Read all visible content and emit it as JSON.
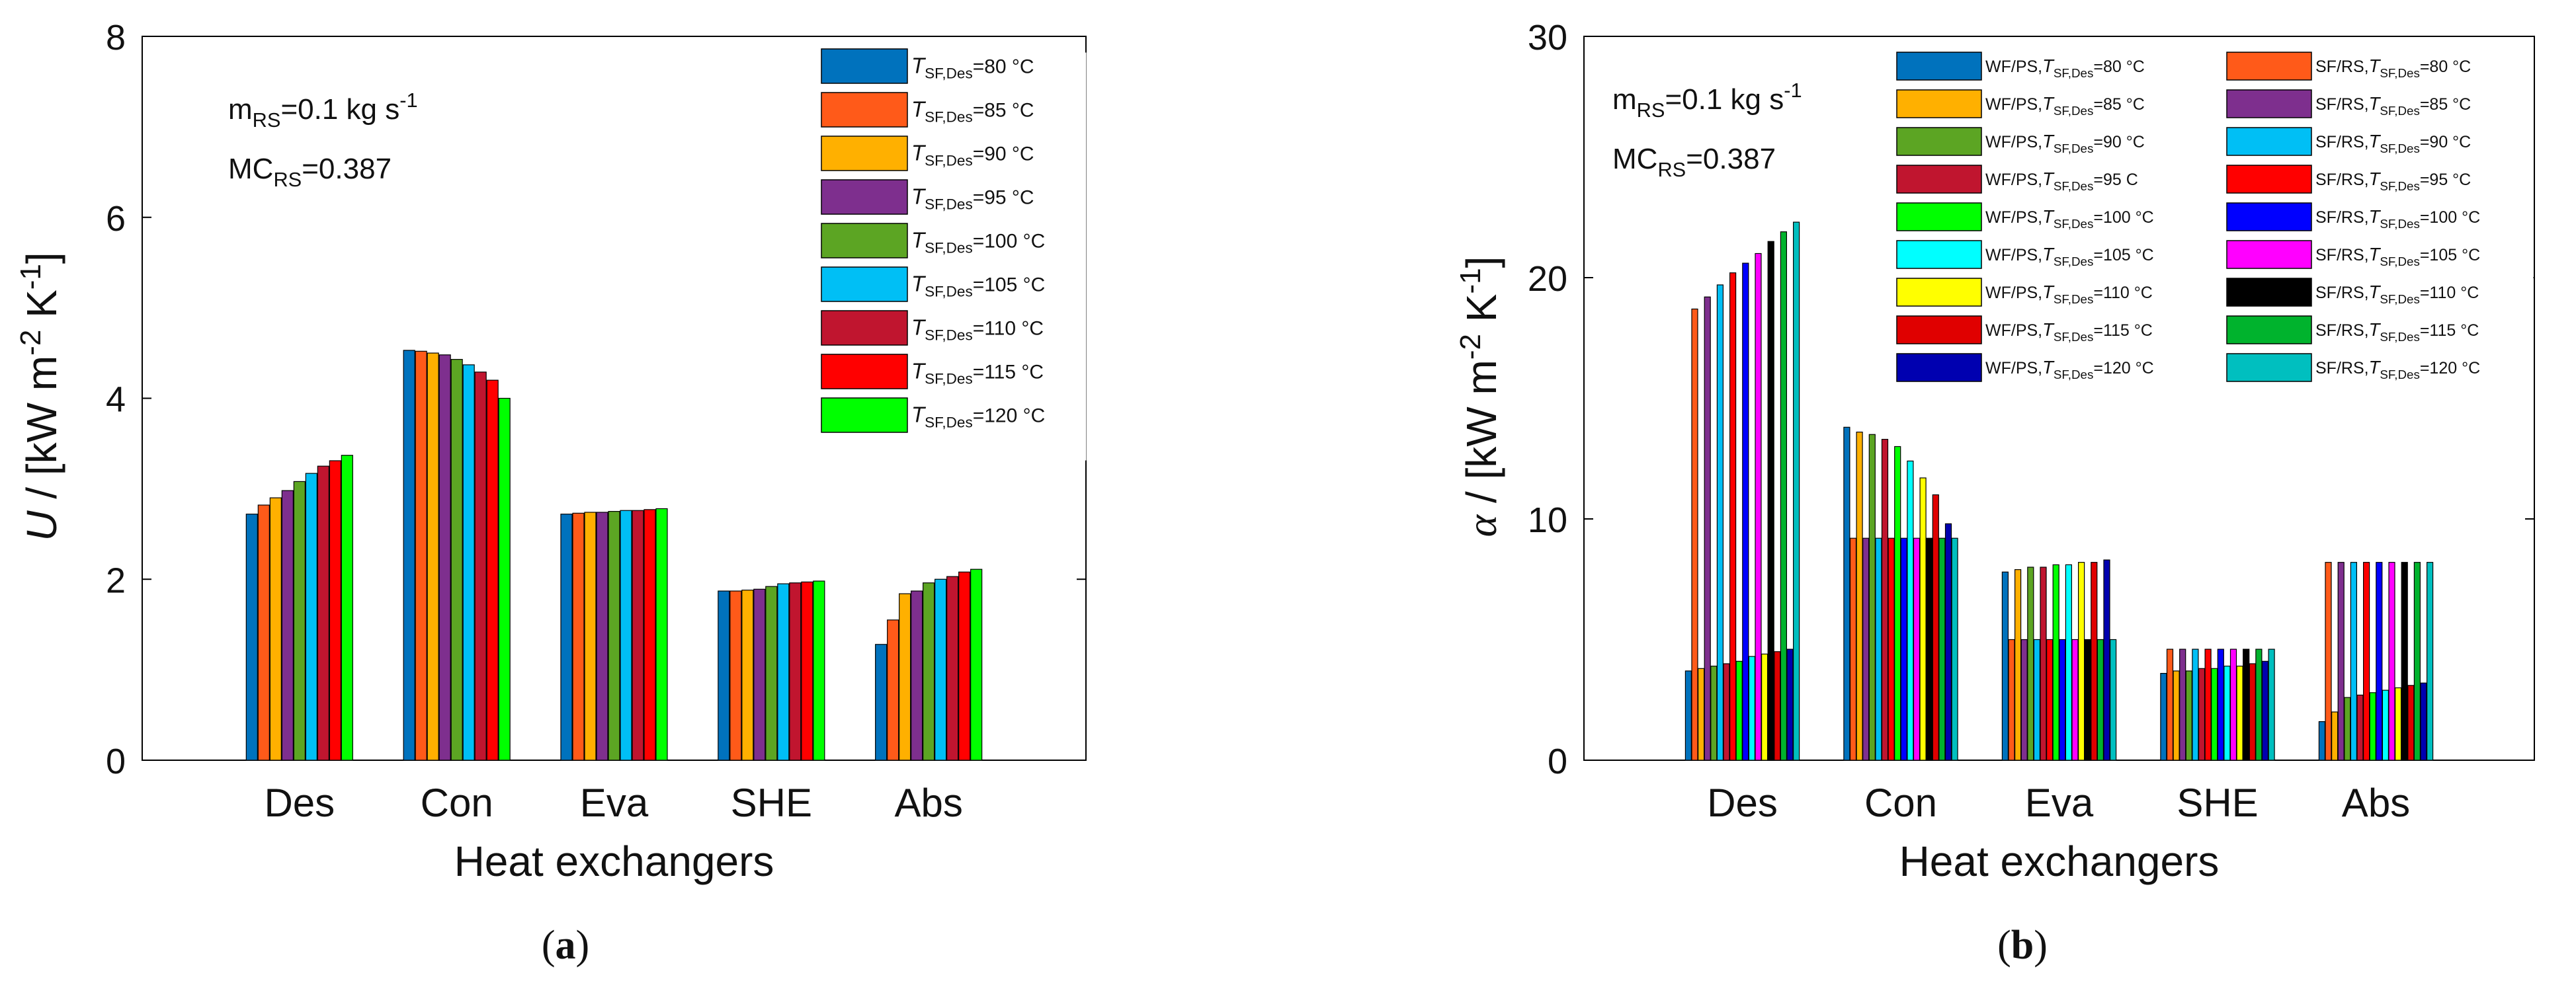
{
  "chart_data": [
    {
      "type": "bar",
      "panel_label": "a",
      "title": "",
      "xlabel": "Heat exchangers",
      "ylabel": "U / [kW m-2 K-1]",
      "ylabel_parts": {
        "symbol": "U",
        "sep": " / [kW m",
        "exp1": "-2",
        "mid": " K",
        "exp2": "-1",
        "end": "]"
      },
      "ylim": [
        0,
        8
      ],
      "yticks": [
        "0",
        "2",
        "4",
        "6",
        "8"
      ],
      "categories": [
        "Des",
        "Con",
        "Eva",
        "SHE",
        "Abs"
      ],
      "annotations": [
        {
          "base": "m",
          "sub": "RS",
          "rest": "=0.1 kg s",
          "sup": "-1"
        },
        {
          "base": "MC",
          "sub": "RS",
          "rest": "=0.387",
          "sup": ""
        }
      ],
      "series": [
        {
          "name": "T_SF,Des=80 °C",
          "leg_pre": "",
          "leg_sub": "SF,Des",
          "leg_post": "=80 °C",
          "color": "#0072BD",
          "values": [
            2.72,
            4.53,
            2.72,
            1.87,
            1.28
          ]
        },
        {
          "name": "T_SF,Des=85 °C",
          "leg_pre": "",
          "leg_sub": "SF,Des",
          "leg_post": "=85 °C",
          "color": "#FF5A19",
          "values": [
            2.82,
            4.52,
            2.73,
            1.87,
            1.55
          ]
        },
        {
          "name": "T_SF,Des=90 °C",
          "leg_pre": "",
          "leg_sub": "SF,Des",
          "leg_post": "=90 °C",
          "color": "#FFB000",
          "values": [
            2.9,
            4.5,
            2.74,
            1.88,
            1.84
          ]
        },
        {
          "name": "T_SF,Des=95 °C",
          "leg_pre": "",
          "leg_sub": "SF,Des",
          "leg_post": "=95 °C",
          "color": "#7E2F8E",
          "values": [
            2.98,
            4.48,
            2.74,
            1.89,
            1.87
          ]
        },
        {
          "name": "T_SF,Des=100 °C",
          "leg_pre": "",
          "leg_sub": "SF,Des",
          "leg_post": "=100 °C",
          "color": "#5CA523",
          "values": [
            3.08,
            4.43,
            2.75,
            1.92,
            1.96
          ]
        },
        {
          "name": "T_SF,Des=105 °C",
          "leg_pre": "",
          "leg_sub": "SF,Des",
          "leg_post": "=105 °C",
          "color": "#00BFF5",
          "values": [
            3.17,
            4.37,
            2.76,
            1.95,
            2.0
          ]
        },
        {
          "name": "T_SF,Des=110 °C",
          "leg_pre": "",
          "leg_sub": "SF,Des",
          "leg_post": "=110 °C",
          "color": "#C0152F",
          "values": [
            3.25,
            4.29,
            2.76,
            1.96,
            2.03
          ]
        },
        {
          "name": "T_SF,Des=115 °C",
          "leg_pre": "",
          "leg_sub": "SF,Des",
          "leg_post": "=115 °C",
          "color": "#FF0000",
          "values": [
            3.31,
            4.2,
            2.77,
            1.97,
            2.08
          ]
        },
        {
          "name": "T_SF,Des=120 °C",
          "leg_pre": "",
          "leg_sub": "SF,Des",
          "leg_post": "=120 °C",
          "color": "#00FF00",
          "values": [
            3.37,
            4.0,
            2.78,
            1.98,
            2.11
          ]
        }
      ]
    },
    {
      "type": "bar",
      "panel_label": "b",
      "title": "",
      "xlabel": "Heat exchangers",
      "ylabel": "α / [kW m-2 K-1]",
      "ylabel_parts": {
        "symbol": "α",
        "sep": " / [kW m",
        "exp1": "-2",
        "mid": " K",
        "exp2": "-1",
        "end": "]"
      },
      "ylim": [
        0,
        30
      ],
      "yticks": [
        "0",
        "10",
        "20",
        "30"
      ],
      "categories": [
        "Des",
        "Con",
        "Eva",
        "SHE",
        "Abs"
      ],
      "annotations": [
        {
          "base": "m",
          "sub": "RS",
          "rest": "=0.1 kg s",
          "sup": "-1"
        },
        {
          "base": "MC",
          "sub": "RS",
          "rest": "=0.387",
          "sup": ""
        }
      ],
      "series": [
        {
          "name": "WF/PS,T_SF,Des=80 °C",
          "leg_pre": "WF/PS,",
          "leg_sub": "SF,Des",
          "leg_post": "=80 °C",
          "color": "#0072BD",
          "values": [
            3.7,
            13.8,
            7.8,
            3.6,
            1.6
          ]
        },
        {
          "name": "SF/RS,T_SF,Des=80 °C",
          "leg_pre": "SF/RS,",
          "leg_sub": "SF,Des",
          "leg_post": "=80 °C",
          "color": "#FF5A19",
          "values": [
            18.7,
            9.2,
            5.0,
            4.6,
            8.2
          ]
        },
        {
          "name": "WF/PS,T_SF,Des=85 °C",
          "leg_pre": "WF/PS,",
          "leg_sub": "SF,Des",
          "leg_post": "=85 °C",
          "color": "#FFB000",
          "values": [
            3.8,
            13.6,
            7.9,
            3.7,
            2.0
          ]
        },
        {
          "name": "SF/RS,T_SF,Des=85 °C",
          "leg_pre": "SF/RS,",
          "leg_sub": "SF,Des",
          "leg_post": "=85 °C",
          "color": "#7E2F8E",
          "values": [
            19.2,
            9.2,
            5.0,
            4.6,
            8.2
          ]
        },
        {
          "name": "WF/PS,T_SF,Des=90 °C",
          "leg_pre": "WF/PS,",
          "leg_sub": "SF,Des",
          "leg_post": "=90 °C",
          "color": "#5CA523",
          "values": [
            3.9,
            13.5,
            8.0,
            3.7,
            2.6
          ]
        },
        {
          "name": "SF/RS,T_SF,Des=90 °C",
          "leg_pre": "SF/RS,",
          "leg_sub": "SF,Des",
          "leg_post": "=90 °C",
          "color": "#00BFF5",
          "values": [
            19.7,
            9.2,
            5.0,
            4.6,
            8.2
          ]
        },
        {
          "name": "WF/PS,T_SF,Des=95  C",
          "leg_pre": "WF/PS,",
          "leg_sub": "SF,Des",
          "leg_post": "=95  C",
          "color": "#C0152F",
          "values": [
            4.0,
            13.3,
            8.0,
            3.8,
            2.7
          ]
        },
        {
          "name": "SF/RS,T_SF,Des=95 °C",
          "leg_pre": "SF/RS,",
          "leg_sub": "SF,Des",
          "leg_post": "=95 °C",
          "color": "#FF0000",
          "values": [
            20.2,
            9.2,
            5.0,
            4.6,
            8.2
          ]
        },
        {
          "name": "WF/PS,T_SF,Des=100 °C",
          "leg_pre": "WF/PS,",
          "leg_sub": "SF,Des",
          "leg_post": "=100 °C",
          "color": "#00FF00",
          "values": [
            4.1,
            13.0,
            8.1,
            3.8,
            2.8
          ]
        },
        {
          "name": "SF/RS,T_SF,Des=100 °C",
          "leg_pre": "SF/RS,",
          "leg_sub": "SF,Des",
          "leg_post": "=100 °C",
          "color": "#0000FF",
          "values": [
            20.6,
            9.2,
            5.0,
            4.6,
            8.2
          ]
        },
        {
          "name": "WF/PS,T_SF,Des=105 °C",
          "leg_pre": "WF/PS,",
          "leg_sub": "SF,Des",
          "leg_post": "=105 °C",
          "color": "#00FFFF",
          "values": [
            4.3,
            12.4,
            8.1,
            3.9,
            2.9
          ]
        },
        {
          "name": "SF/RS,T_SF,Des=105 °C",
          "leg_pre": "SF/RS,",
          "leg_sub": "SF,Des",
          "leg_post": "=105 °C",
          "color": "#FF00FF",
          "values": [
            21.0,
            9.2,
            5.0,
            4.6,
            8.2
          ]
        },
        {
          "name": "WF/PS,T_SF,Des=110 °C",
          "leg_pre": "WF/PS,",
          "leg_sub": "SF,Des",
          "leg_post": "=110 °C",
          "color": "#FFFF00",
          "values": [
            4.4,
            11.7,
            8.2,
            3.9,
            3.0
          ]
        },
        {
          "name": "SF/RS,T_SF,Des=110 °C",
          "leg_pre": "SF/RS,",
          "leg_sub": "SF,Des",
          "leg_post": "=110 °C",
          "color": "#000000",
          "values": [
            21.5,
            9.2,
            5.0,
            4.6,
            8.2
          ]
        },
        {
          "name": "WF/PS,T_SF,Des=115 °C",
          "leg_pre": "WF/PS,",
          "leg_sub": "SF,Des",
          "leg_post": "=115 °C",
          "color": "#E00000",
          "values": [
            4.5,
            11.0,
            8.2,
            4.0,
            3.1
          ]
        },
        {
          "name": "SF/RS,T_SF,Des=115 °C",
          "leg_pre": "SF/RS,",
          "leg_sub": "SF,Des",
          "leg_post": "=115 °C",
          "color": "#00B32D",
          "values": [
            21.9,
            9.2,
            5.0,
            4.6,
            8.2
          ]
        },
        {
          "name": "WF/PS,T_SF,Des=120 °C",
          "leg_pre": "WF/PS,",
          "leg_sub": "SF,Des",
          "leg_post": "=120 °C",
          "color": "#0000B0",
          "values": [
            4.6,
            9.8,
            8.3,
            4.1,
            3.2
          ]
        },
        {
          "name": "SF/RS,T_SF,Des=120 °C",
          "leg_pre": "SF/RS,",
          "leg_sub": "SF,Des",
          "leg_post": "=120 °C",
          "color": "#00BFBF",
          "values": [
            22.3,
            9.2,
            5.0,
            4.6,
            8.2
          ]
        }
      ]
    }
  ]
}
